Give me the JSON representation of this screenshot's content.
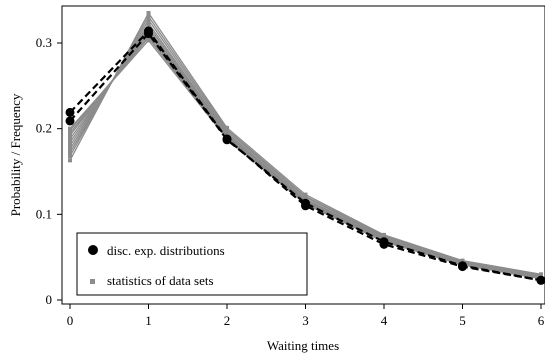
{
  "chart_data": {
    "type": "line",
    "title": "",
    "xlabel": "Waiting times",
    "ylabel": "Probability / Frequency",
    "xlim": [
      0,
      6
    ],
    "ylim": [
      0,
      0.34
    ],
    "xticks": [
      0,
      1,
      2,
      3,
      4,
      5,
      6
    ],
    "yticks": [
      0,
      0.1,
      0.2,
      0.3
    ],
    "ytick_labels": [
      "0",
      "0.1",
      "0.2",
      "0.3"
    ],
    "grid": false,
    "legend_position": "bottom-left",
    "x": [
      0,
      1,
      2,
      3,
      4,
      5,
      6
    ],
    "series": [
      {
        "name": "disc. exp. distributions",
        "style": "dashed black lines with black circle markers",
        "color": "#000000",
        "lines": [
          [
            0.209,
            0.311,
            0.187,
            0.113,
            0.068,
            0.04,
            0.023
          ],
          [
            0.219,
            0.314,
            0.188,
            0.11,
            0.065,
            0.039,
            0.023
          ]
        ]
      },
      {
        "name": "statistics of data sets",
        "style": "solid gray lines with small square markers",
        "color": "#8c8c8c",
        "lines": [
          [
            0.163,
            0.335,
            0.201,
            0.123,
            0.076,
            0.046,
            0.03
          ],
          [
            0.168,
            0.331,
            0.199,
            0.121,
            0.075,
            0.045,
            0.029
          ],
          [
            0.172,
            0.327,
            0.197,
            0.12,
            0.074,
            0.045,
            0.029
          ],
          [
            0.176,
            0.323,
            0.195,
            0.118,
            0.073,
            0.044,
            0.028
          ],
          [
            0.18,
            0.32,
            0.194,
            0.117,
            0.072,
            0.044,
            0.028
          ],
          [
            0.184,
            0.317,
            0.193,
            0.116,
            0.071,
            0.043,
            0.027
          ],
          [
            0.188,
            0.314,
            0.192,
            0.115,
            0.071,
            0.043,
            0.027
          ],
          [
            0.192,
            0.311,
            0.191,
            0.114,
            0.07,
            0.042,
            0.026
          ],
          [
            0.195,
            0.308,
            0.19,
            0.114,
            0.07,
            0.042,
            0.026
          ],
          [
            0.198,
            0.306,
            0.189,
            0.113,
            0.069,
            0.041,
            0.025
          ],
          [
            0.2,
            0.303,
            0.188,
            0.112,
            0.068,
            0.041,
            0.025
          ]
        ]
      }
    ]
  },
  "legend": {
    "items": [
      {
        "label": "disc. exp. distributions",
        "marker": "black-circle"
      },
      {
        "label": "statistics of data sets",
        "marker": "gray-square"
      }
    ]
  },
  "axes": {
    "xlabel": "Waiting times",
    "ylabel": "Probability / Frequency"
  }
}
